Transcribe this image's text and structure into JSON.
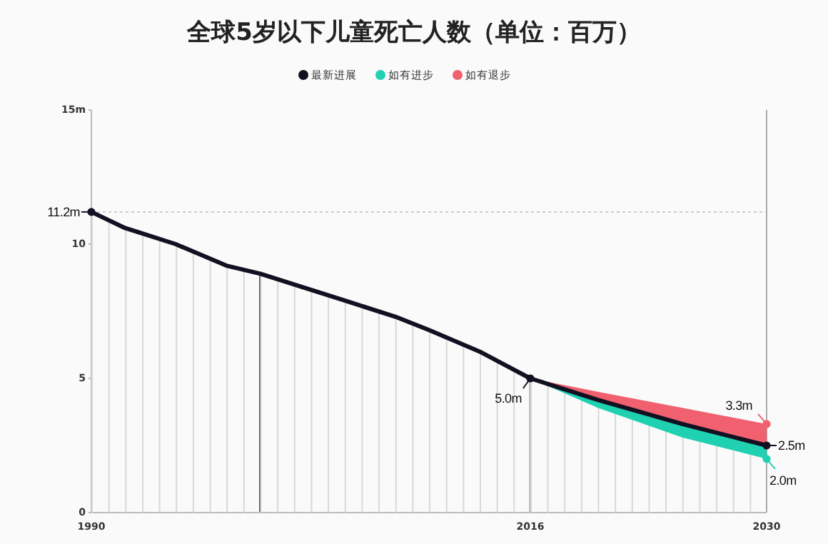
{
  "chart_data": {
    "type": "area",
    "title": "全球5岁以下儿童死亡人数（单位：百万）",
    "legend": "top",
    "xlim": [
      1990,
      2030
    ],
    "ylim": [
      0,
      15
    ],
    "xticks": [
      1990,
      2016,
      2030
    ],
    "yticks": [
      0,
      5,
      10,
      {
        "value": 15,
        "label": "15m"
      }
    ],
    "series": [
      {
        "name": "最新进展",
        "color": "#111122",
        "x": [
          1990,
          1992,
          1993,
          1995,
          1998,
          2000,
          2003,
          2005,
          2008,
          2010,
          2013,
          2016,
          2020,
          2025,
          2030
        ],
        "values": [
          11.2,
          10.6,
          10.4,
          10.0,
          9.2,
          8.9,
          8.3,
          7.9,
          7.3,
          6.8,
          6.0,
          5.0,
          4.2,
          3.3,
          2.5
        ]
      },
      {
        "name": "如有进步",
        "type": "area",
        "color": "#1fd1b0",
        "x": [
          2016,
          2020,
          2025,
          2030
        ],
        "values": [
          5.0,
          3.9,
          2.8,
          2.0
        ]
      },
      {
        "name": "如有退步",
        "type": "area",
        "color": "#f0606e",
        "x": [
          2016,
          2020,
          2025,
          2030
        ],
        "values": [
          5.0,
          4.5,
          3.9,
          3.3
        ]
      }
    ],
    "ref_lines": [
      {
        "axis": "y",
        "value": 11.2,
        "color": "#cccccc",
        "line_style": "dotted"
      },
      {
        "axis": "x",
        "value": 2000,
        "color": "#555555"
      },
      {
        "axis": "x",
        "value": 2016,
        "color": "#aaaaaa"
      },
      {
        "axis": "x",
        "value": 2030,
        "color": "#aaaaaa"
      }
    ],
    "annotations": [
      {
        "text": "11.2m",
        "x": 1990,
        "y": 11.2
      },
      {
        "text": "5.0m",
        "x": 2016,
        "y": 5.0
      },
      {
        "text": "3.3m",
        "x": 2030,
        "y": 3.3
      },
      {
        "text": "2.5m",
        "x": 2030,
        "y": 2.5
      },
      {
        "text": "2.0m",
        "x": 2030,
        "y": 2.0
      }
    ]
  }
}
